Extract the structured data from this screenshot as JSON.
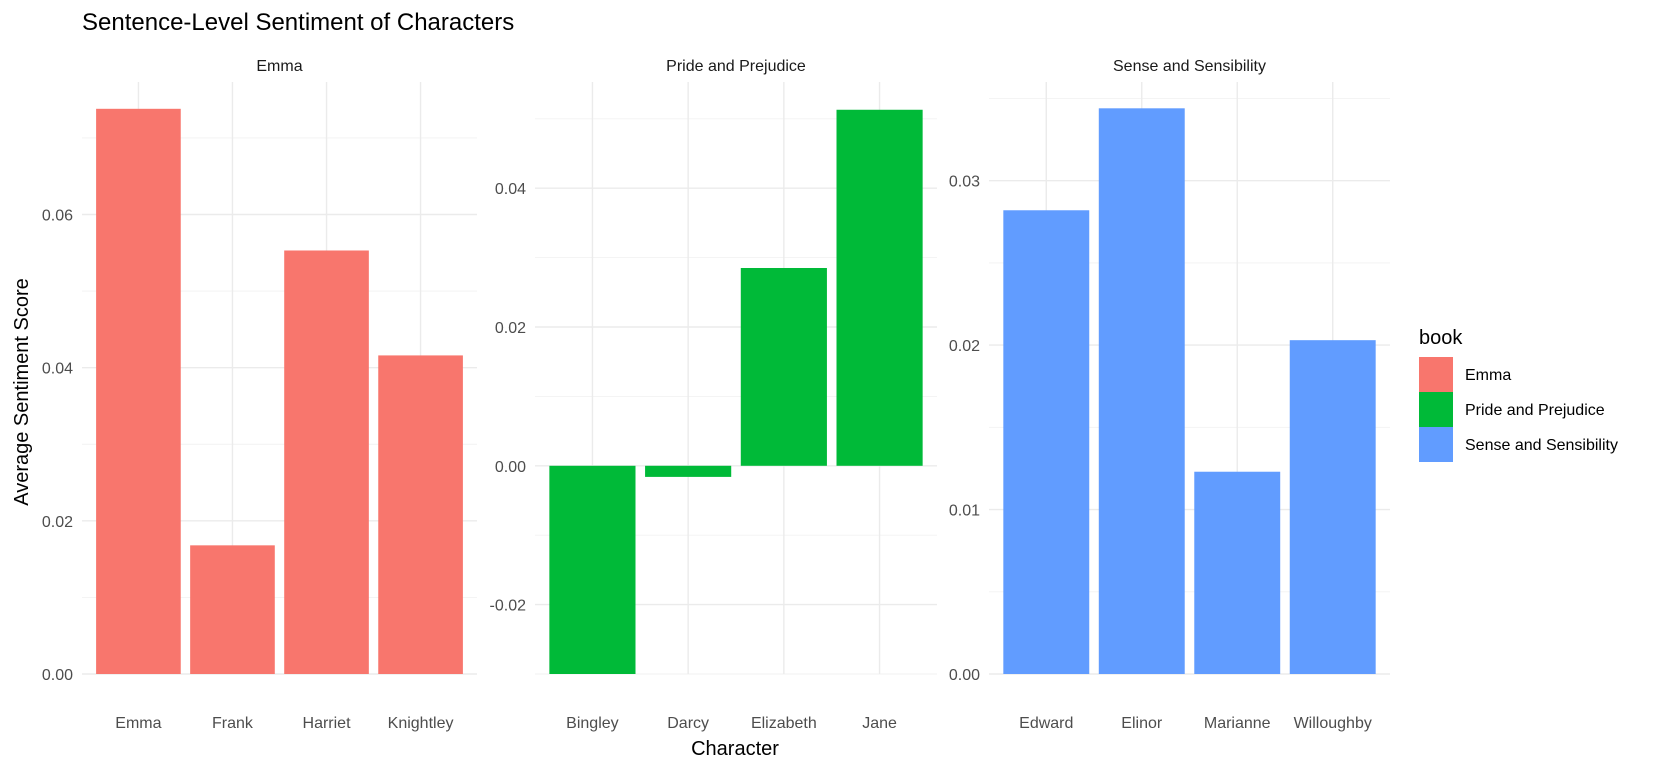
{
  "chart_data": {
    "type": "bar",
    "title": "Sentence-Level Sentiment of Characters",
    "xlabel": "Character",
    "ylabel": "Average Sentiment Score",
    "grid": true,
    "legend": {
      "title": "book",
      "position": "right",
      "entries": [
        {
          "label": "Emma",
          "color": "#F8766D"
        },
        {
          "label": "Pride and Prejudice",
          "color": "#00BA38"
        },
        {
          "label": "Sense and Sensibility",
          "color": "#619CFF"
        }
      ]
    },
    "panels": [
      {
        "name": "Emma",
        "color": "#F8766D",
        "categories": [
          "Emma",
          "Frank",
          "Harriet",
          "Knightley"
        ],
        "values": [
          0.0738,
          0.0168,
          0.0553,
          0.0416
        ],
        "ylim": [
          0,
          0.0773
        ],
        "yticks": [
          {
            "value": 0.0,
            "label": "0.00"
          },
          {
            "value": 0.02,
            "label": "0.02"
          },
          {
            "value": 0.04,
            "label": "0.04"
          },
          {
            "value": 0.06,
            "label": "0.06"
          }
        ]
      },
      {
        "name": "Pride and Prejudice",
        "color": "#00BA38",
        "categories": [
          "Bingley",
          "Darcy",
          "Elizabeth",
          "Jane"
        ],
        "values": [
          -0.03,
          -0.0016,
          0.0285,
          0.0513
        ],
        "ylim": [
          -0.03,
          0.0553
        ],
        "yticks": [
          {
            "value": -0.02,
            "label": "-0.02"
          },
          {
            "value": 0.0,
            "label": "0.00"
          },
          {
            "value": 0.02,
            "label": "0.02"
          },
          {
            "value": 0.04,
            "label": "0.04"
          }
        ]
      },
      {
        "name": "Sense and Sensibility",
        "color": "#619CFF",
        "categories": [
          "Edward",
          "Elinor",
          "Marianne",
          "Willoughby"
        ],
        "values": [
          0.0282,
          0.0344,
          0.0123,
          0.0203
        ],
        "ylim": [
          0,
          0.036
        ],
        "yticks": [
          {
            "value": 0.0,
            "label": "0.00"
          },
          {
            "value": 0.01,
            "label": "0.01"
          },
          {
            "value": 0.02,
            "label": "0.02"
          },
          {
            "value": 0.03,
            "label": "0.03"
          }
        ]
      }
    ]
  }
}
